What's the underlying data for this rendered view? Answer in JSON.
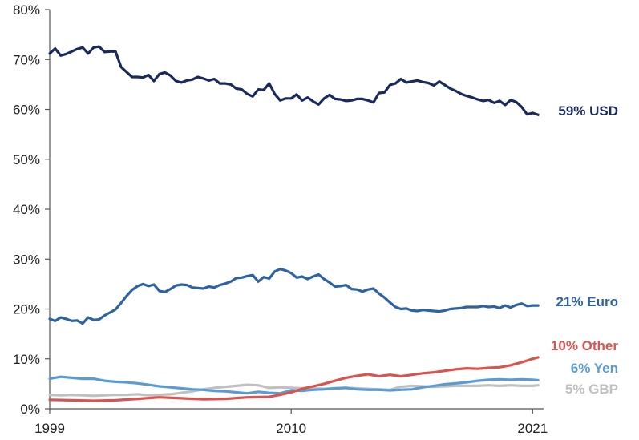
{
  "chart_data": {
    "type": "line",
    "title": "",
    "xlabel": "",
    "ylabel": "",
    "xlim": [
      1999,
      2021.5
    ],
    "ylim": [
      0,
      80
    ],
    "y_ticks": [
      0,
      10,
      20,
      30,
      40,
      50,
      60,
      70,
      80
    ],
    "y_tick_labels": [
      "0%",
      "10%",
      "20%",
      "30%",
      "40%",
      "50%",
      "60%",
      "70%",
      "80%"
    ],
    "x_ticks": [
      1999,
      2010,
      2021
    ],
    "x_tick_labels": [
      "1999",
      "2010",
      "2021"
    ],
    "grid": false,
    "legend": "end-of-line labels",
    "series": [
      {
        "name": "59% USD",
        "color": "#1a2a5e",
        "x": [
          1999,
          1999.25,
          1999.5,
          1999.75,
          2000,
          2000.25,
          2000.5,
          2000.75,
          2001,
          2001.25,
          2001.5,
          2001.75,
          2002,
          2002.25,
          2002.5,
          2002.75,
          2003,
          2003.25,
          2003.5,
          2003.75,
          2004,
          2004.25,
          2004.5,
          2004.75,
          2005,
          2005.25,
          2005.5,
          2005.75,
          2006,
          2006.25,
          2006.5,
          2006.75,
          2007,
          2007.25,
          2007.5,
          2007.75,
          2008,
          2008.25,
          2008.5,
          2008.75,
          2009,
          2009.25,
          2009.5,
          2009.75,
          2010,
          2010.25,
          2010.5,
          2010.75,
          2011,
          2011.25,
          2011.5,
          2011.75,
          2012,
          2012.25,
          2012.5,
          2012.75,
          2013,
          2013.25,
          2013.5,
          2013.75,
          2014,
          2014.25,
          2014.5,
          2014.75,
          2015,
          2015.25,
          2015.5,
          2015.75,
          2016,
          2016.25,
          2016.5,
          2016.75,
          2017,
          2017.25,
          2017.5,
          2017.75,
          2018,
          2018.25,
          2018.5,
          2018.75,
          2019,
          2019.25,
          2019.5,
          2019.75,
          2020,
          2020.25,
          2020.5,
          2020.75,
          2021,
          2021.25
        ],
        "values": [
          71.2,
          72.2,
          70.8,
          71.1,
          71.6,
          72.1,
          72.4,
          71.2,
          72.4,
          72.6,
          71.5,
          71.6,
          71.6,
          68.5,
          67.5,
          66.5,
          66.5,
          66.4,
          66.9,
          65.7,
          67.1,
          67.4,
          66.8,
          65.7,
          65.4,
          65.8,
          66.0,
          66.5,
          66.2,
          65.8,
          66.1,
          65.2,
          65.2,
          65.0,
          64.2,
          64.0,
          63.1,
          62.6,
          64.0,
          63.9,
          65.2,
          63.1,
          61.8,
          62.2,
          62.2,
          63.0,
          61.8,
          62.4,
          61.6,
          61.0,
          62.2,
          62.9,
          62.1,
          62.0,
          61.7,
          61.8,
          62.1,
          62.1,
          61.8,
          61.4,
          63.3,
          63.4,
          64.9,
          65.2,
          66.1,
          65.4,
          65.6,
          65.8,
          65.5,
          65.3,
          64.8,
          65.6,
          64.9,
          64.2,
          63.7,
          63.1,
          62.7,
          62.4,
          62.0,
          61.7,
          61.9,
          61.3,
          61.7,
          60.9,
          61.9,
          61.5,
          60.5,
          59.0,
          59.3,
          58.9
        ]
      },
      {
        "name": "21% Euro",
        "color": "#2d63a3",
        "x": [
          1999,
          1999.25,
          1999.5,
          1999.75,
          2000,
          2000.25,
          2000.5,
          2000.75,
          2001,
          2001.25,
          2001.5,
          2001.75,
          2002,
          2002.25,
          2002.5,
          2002.75,
          2003,
          2003.25,
          2003.5,
          2003.75,
          2004,
          2004.25,
          2004.5,
          2004.75,
          2005,
          2005.25,
          2005.5,
          2005.75,
          2006,
          2006.25,
          2006.5,
          2006.75,
          2007,
          2007.25,
          2007.5,
          2007.75,
          2008,
          2008.25,
          2008.5,
          2008.75,
          2009,
          2009.25,
          2009.5,
          2009.75,
          2010,
          2010.25,
          2010.5,
          2010.75,
          2011,
          2011.25,
          2011.5,
          2011.75,
          2012,
          2012.25,
          2012.5,
          2012.75,
          2013,
          2013.25,
          2013.5,
          2013.75,
          2014,
          2014.25,
          2014.5,
          2014.75,
          2015,
          2015.25,
          2015.5,
          2015.75,
          2016,
          2016.25,
          2016.5,
          2016.75,
          2017,
          2017.25,
          2017.5,
          2017.75,
          2018,
          2018.25,
          2018.5,
          2018.75,
          2019,
          2019.25,
          2019.5,
          2019.75,
          2020,
          2020.25,
          2020.5,
          2020.75,
          2021,
          2021.25
        ],
        "values": [
          18.0,
          17.6,
          18.3,
          18.0,
          17.6,
          17.7,
          17.1,
          18.3,
          17.8,
          17.9,
          18.7,
          19.3,
          19.9,
          21.2,
          22.6,
          23.8,
          24.6,
          25.0,
          24.6,
          24.9,
          23.6,
          23.4,
          24.0,
          24.7,
          24.9,
          24.8,
          24.3,
          24.2,
          24.1,
          24.5,
          24.3,
          24.8,
          25.1,
          25.5,
          26.2,
          26.3,
          26.6,
          26.8,
          25.5,
          26.4,
          26.1,
          27.5,
          28.0,
          27.7,
          27.2,
          26.3,
          26.5,
          26.0,
          26.5,
          26.9,
          26.0,
          25.3,
          24.5,
          24.6,
          24.8,
          24.0,
          23.9,
          23.5,
          23.9,
          24.1,
          23.1,
          22.3,
          21.3,
          20.4,
          20.0,
          20.1,
          19.7,
          19.6,
          19.8,
          19.7,
          19.6,
          19.5,
          19.7,
          20.0,
          20.1,
          20.2,
          20.4,
          20.4,
          20.4,
          20.6,
          20.4,
          20.5,
          20.2,
          20.7,
          20.3,
          20.8,
          21.1,
          20.6,
          20.7,
          20.7
        ]
      },
      {
        "name": "10% Other",
        "color": "#d9534f",
        "x": [
          1999,
          2000,
          2001,
          2002,
          2003,
          2004,
          2005,
          2006,
          2007,
          2008,
          2009,
          2009.5,
          2010,
          2010.5,
          2011,
          2011.5,
          2012,
          2012.5,
          2013,
          2013.5,
          2014,
          2014.5,
          2015,
          2015.5,
          2016,
          2016.5,
          2017,
          2017.5,
          2018,
          2018.5,
          2019,
          2019.5,
          2020,
          2020.5,
          2021,
          2021.25
        ],
        "values": [
          1.8,
          1.7,
          1.6,
          1.7,
          2.0,
          2.3,
          2.1,
          1.9,
          2.0,
          2.3,
          2.4,
          2.8,
          3.3,
          4.0,
          4.5,
          5.0,
          5.6,
          6.2,
          6.6,
          6.9,
          6.5,
          6.8,
          6.5,
          6.8,
          7.1,
          7.3,
          7.6,
          7.9,
          8.1,
          8.0,
          8.2,
          8.3,
          8.7,
          9.3,
          10.0,
          10.3
        ]
      },
      {
        "name": "6% Yen",
        "color": "#5b9bd5",
        "x": [
          1999,
          1999.5,
          2000,
          2000.5,
          2001,
          2001.5,
          2002,
          2002.5,
          2003,
          2003.5,
          2004,
          2004.5,
          2005,
          2005.5,
          2006,
          2006.5,
          2007,
          2007.5,
          2008,
          2008.5,
          2009,
          2009.5,
          2010,
          2010.5,
          2011,
          2011.5,
          2012,
          2012.5,
          2013,
          2013.5,
          2014,
          2014.5,
          2015,
          2015.5,
          2016,
          2016.5,
          2017,
          2017.5,
          2018,
          2018.5,
          2019,
          2019.5,
          2020,
          2020.5,
          2021,
          2021.25
        ],
        "values": [
          6.0,
          6.4,
          6.2,
          6.0,
          6.0,
          5.6,
          5.4,
          5.3,
          5.1,
          4.8,
          4.5,
          4.3,
          4.1,
          3.9,
          3.8,
          3.6,
          3.5,
          3.3,
          3.1,
          3.4,
          3.2,
          3.1,
          3.7,
          3.6,
          3.8,
          3.9,
          4.1,
          4.2,
          3.9,
          3.8,
          3.8,
          3.7,
          3.8,
          3.9,
          4.3,
          4.6,
          4.9,
          5.1,
          5.3,
          5.6,
          5.8,
          5.9,
          5.8,
          5.9,
          5.8,
          5.7
        ]
      },
      {
        "name": "5% GBP",
        "color": "#c0c0c0",
        "x": [
          1999,
          1999.5,
          2000,
          2000.5,
          2001,
          2001.5,
          2002,
          2002.5,
          2003,
          2003.5,
          2004,
          2004.5,
          2005,
          2005.5,
          2006,
          2006.5,
          2007,
          2007.5,
          2008,
          2008.5,
          2009,
          2009.5,
          2010,
          2010.5,
          2011,
          2011.5,
          2012,
          2012.5,
          2013,
          2013.5,
          2014,
          2014.5,
          2015,
          2015.5,
          2016,
          2016.5,
          2017,
          2017.5,
          2018,
          2018.5,
          2019,
          2019.5,
          2020,
          2020.5,
          2021,
          2021.25
        ],
        "values": [
          2.8,
          2.7,
          2.8,
          2.7,
          2.6,
          2.7,
          2.8,
          2.8,
          2.9,
          2.7,
          2.8,
          2.9,
          3.2,
          3.5,
          3.9,
          4.2,
          4.4,
          4.6,
          4.8,
          4.7,
          4.2,
          4.3,
          4.2,
          4.1,
          4.1,
          4.0,
          4.1,
          4.2,
          4.1,
          4.0,
          3.9,
          3.8,
          4.4,
          4.6,
          4.5,
          4.4,
          4.5,
          4.6,
          4.6,
          4.6,
          4.7,
          4.6,
          4.7,
          4.6,
          4.6,
          4.7
        ]
      }
    ]
  }
}
